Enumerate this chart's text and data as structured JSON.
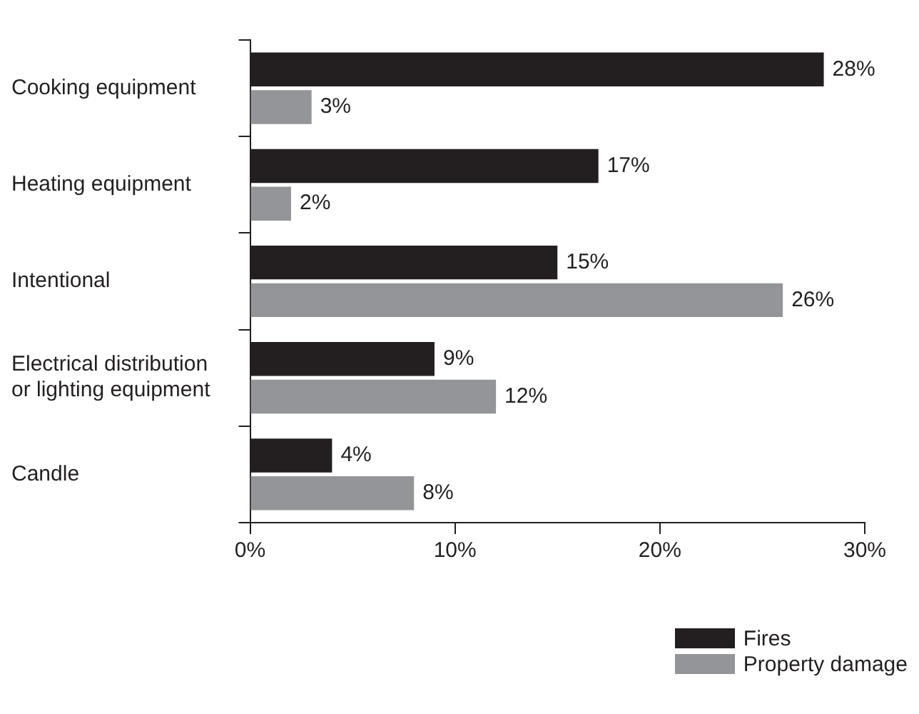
{
  "chart_data": {
    "type": "bar",
    "orientation": "horizontal",
    "categories": [
      "Cooking equipment",
      "Heating equipment",
      "Intentional",
      "Electrical distribution or lighting equipment",
      "Candle"
    ],
    "series": [
      {
        "name": "Fires",
        "color": "#231f20",
        "values": [
          28,
          17,
          15,
          9,
          4
        ],
        "value_labels": [
          "28%",
          "17%",
          "15%",
          "9%",
          "4%"
        ]
      },
      {
        "name": "Property damage",
        "color": "#939598",
        "values": [
          3,
          2,
          26,
          12,
          8
        ],
        "value_labels": [
          "3%",
          "2%",
          "26%",
          "12%",
          "8%"
        ]
      }
    ],
    "xlim": [
      0,
      30
    ],
    "xticks": [
      {
        "value": 0,
        "label": "0%"
      },
      {
        "value": 10,
        "label": "10%"
      },
      {
        "value": 20,
        "label": "20%"
      },
      {
        "value": 30,
        "label": "30%"
      }
    ],
    "grid": false,
    "legend": "bottom right"
  }
}
